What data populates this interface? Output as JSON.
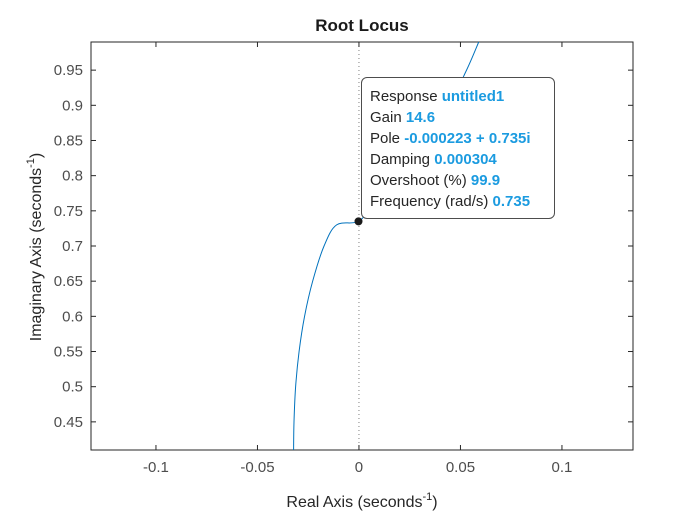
{
  "chart_data": {
    "type": "line",
    "title": "Root Locus",
    "xlabel": "Real Axis (seconds",
    "ylabel": "Imaginary Axis (seconds",
    "axis_unit_exponent": "-1",
    "xlim": [
      -0.132,
      0.135
    ],
    "ylim": [
      0.41,
      0.99
    ],
    "x_ticks": [
      -0.1,
      -0.05,
      0,
      0.05,
      0.1
    ],
    "x_tick_labels": [
      "-0.1",
      "-0.05",
      "0",
      "0.05",
      "0.1"
    ],
    "y_ticks": [
      0.45,
      0.5,
      0.55,
      0.6,
      0.65,
      0.7,
      0.75,
      0.8,
      0.85,
      0.9,
      0.95
    ],
    "y_tick_labels": [
      "0.45",
      "0.5",
      "0.55",
      "0.6",
      "0.65",
      "0.7",
      "0.75",
      "0.8",
      "0.85",
      "0.9",
      "0.95"
    ],
    "grid": false,
    "imaginary_axis_reference": "dotted",
    "series": [
      {
        "color": "#0072bd",
        "points": [
          [
            -0.0322,
            0.41
          ],
          [
            -0.032,
            0.45
          ],
          [
            -0.0312,
            0.5
          ],
          [
            -0.0295,
            0.55
          ],
          [
            -0.0268,
            0.6
          ],
          [
            -0.0228,
            0.65
          ],
          [
            -0.0172,
            0.7
          ],
          [
            -0.011,
            0.73
          ],
          [
            -0.0002,
            0.735
          ],
          [
            0.007,
            0.76
          ],
          [
            0.018,
            0.8
          ],
          [
            0.03,
            0.85
          ],
          [
            0.044,
            0.9
          ],
          [
            0.053,
            0.95
          ],
          [
            0.059,
            0.99
          ]
        ]
      }
    ],
    "marker": {
      "x": -0.000223,
      "y": 0.735,
      "color": "#1a1a1a"
    },
    "datatip": {
      "rows": [
        {
          "label": "Response",
          "value": "untitled1"
        },
        {
          "label": "Gain",
          "value": "14.6"
        },
        {
          "label": "Pole",
          "value": "-0.000223 + 0.735i"
        },
        {
          "label": "Damping",
          "value": "0.000304"
        },
        {
          "label": "Overshoot (%)",
          "value": "99.9"
        },
        {
          "label": "Frequency (rad/s)",
          "value": "0.735"
        }
      ],
      "value_color": "#1b9be0"
    }
  }
}
